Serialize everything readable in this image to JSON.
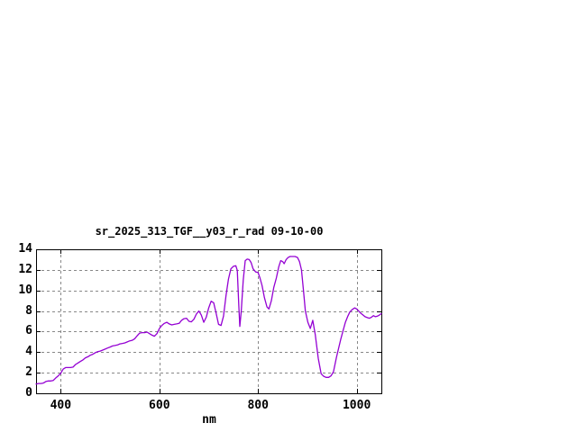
{
  "window": {
    "background_color": "#ffffff"
  },
  "chart_data": {
    "type": "line",
    "title": "sr_2025_313_TGF__y03_r_rad 09-10-00",
    "xlabel": "nm",
    "ylabel": "",
    "xlim": [
      350,
      1050
    ],
    "ylim": [
      0,
      14
    ],
    "x_ticks": [
      400,
      600,
      800,
      1000
    ],
    "y_ticks": [
      0,
      2,
      4,
      6,
      8,
      10,
      12,
      14
    ],
    "grid": "dashed-gray-at-all-ticks",
    "legend_position": "none",
    "line_color": "#9400d3",
    "grid_color": "#888888",
    "axis_color": "#000000",
    "series": [
      {
        "name": "sr_2025_313_TGF__y03_r_rad",
        "x": [
          350,
          355,
          360,
          365,
          370,
          375,
          380,
          385,
          390,
          395,
          400,
          405,
          410,
          415,
          420,
          425,
          430,
          435,
          440,
          445,
          450,
          455,
          460,
          465,
          470,
          475,
          480,
          485,
          490,
          495,
          500,
          505,
          510,
          515,
          520,
          525,
          530,
          535,
          540,
          545,
          550,
          555,
          560,
          565,
          570,
          575,
          580,
          585,
          590,
          595,
          600,
          605,
          610,
          615,
          620,
          625,
          630,
          635,
          640,
          645,
          650,
          655,
          660,
          665,
          670,
          675,
          680,
          685,
          690,
          695,
          700,
          705,
          710,
          715,
          720,
          725,
          730,
          735,
          740,
          745,
          750,
          755,
          758,
          761,
          763,
          766,
          770,
          774,
          778,
          782,
          786,
          790,
          795,
          800,
          804,
          808,
          813,
          818,
          822,
          827,
          832,
          837,
          842,
          846,
          850,
          853,
          857,
          861,
          865,
          870,
          875,
          880,
          884,
          888,
          892,
          896,
          901,
          906,
          911,
          916,
          922,
          928,
          933,
          938,
          943,
          948,
          953,
          959,
          964,
          968,
          973,
          977,
          982,
          986,
          991,
          996,
          1000,
          1004,
          1008,
          1013,
          1017,
          1022,
          1026,
          1030,
          1034,
          1038,
          1042,
          1046,
          1050
        ],
        "y": [
          0.9,
          0.95,
          0.95,
          1.0,
          1.15,
          1.2,
          1.2,
          1.25,
          1.5,
          1.7,
          1.95,
          2.35,
          2.5,
          2.5,
          2.5,
          2.55,
          2.8,
          2.95,
          3.1,
          3.25,
          3.45,
          3.55,
          3.7,
          3.8,
          3.95,
          4.05,
          4.1,
          4.2,
          4.3,
          4.4,
          4.5,
          4.6,
          4.65,
          4.7,
          4.8,
          4.85,
          4.9,
          5.0,
          5.1,
          5.15,
          5.3,
          5.6,
          5.85,
          5.9,
          5.9,
          5.95,
          5.8,
          5.65,
          5.55,
          5.8,
          6.3,
          6.6,
          6.8,
          6.9,
          6.75,
          6.65,
          6.7,
          6.75,
          6.8,
          7.1,
          7.25,
          7.3,
          7.0,
          6.95,
          7.2,
          7.7,
          8.0,
          7.6,
          6.9,
          7.4,
          8.3,
          8.95,
          8.8,
          7.8,
          6.7,
          6.6,
          7.5,
          9.5,
          11.1,
          12.1,
          12.35,
          12.4,
          11.95,
          8.5,
          6.5,
          8.0,
          11.0,
          12.9,
          13.05,
          13.0,
          12.7,
          12.1,
          11.8,
          11.75,
          11.2,
          10.5,
          9.3,
          8.4,
          8.2,
          9.0,
          10.3,
          11.2,
          12.3,
          12.9,
          12.8,
          12.6,
          13.0,
          13.2,
          13.3,
          13.3,
          13.3,
          13.2,
          12.8,
          12.0,
          10.0,
          8.0,
          6.9,
          6.3,
          7.1,
          5.7,
          3.4,
          1.9,
          1.65,
          1.55,
          1.55,
          1.7,
          2.1,
          3.5,
          4.5,
          5.3,
          6.2,
          6.9,
          7.5,
          7.9,
          8.15,
          8.3,
          8.2,
          8.0,
          7.8,
          7.6,
          7.45,
          7.35,
          7.3,
          7.4,
          7.55,
          7.45,
          7.5,
          7.6,
          7.75
        ]
      }
    ]
  }
}
